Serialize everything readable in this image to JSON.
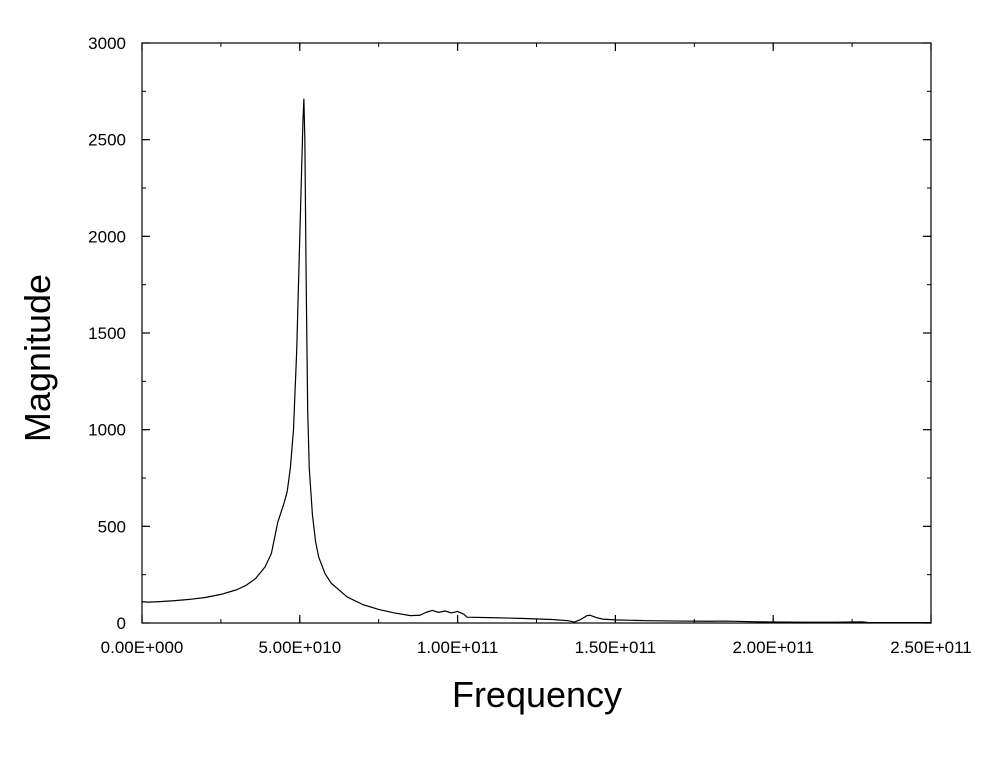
{
  "chart_data": {
    "type": "line",
    "title": "",
    "xlabel": "Frequency",
    "ylabel": "Magnitude",
    "xlim": [
      0,
      250000000000
    ],
    "ylim": [
      0,
      3000
    ],
    "grid": false,
    "legend": "none",
    "line_color": "#000000",
    "x_ticks": [
      {
        "value": 0,
        "label": "0.00E+000"
      },
      {
        "value": 50000000000,
        "label": "5.00E+010"
      },
      {
        "value": 100000000000,
        "label": "1.00E+011"
      },
      {
        "value": 150000000000,
        "label": "1.50E+011"
      },
      {
        "value": 200000000000,
        "label": "2.00E+011"
      },
      {
        "value": 250000000000,
        "label": "2.50E+011"
      }
    ],
    "y_ticks": [
      {
        "value": 0,
        "label": "0"
      },
      {
        "value": 500,
        "label": "500"
      },
      {
        "value": 1000,
        "label": "1000"
      },
      {
        "value": 1500,
        "label": "1500"
      },
      {
        "value": 2000,
        "label": "2000"
      },
      {
        "value": 2500,
        "label": "2500"
      },
      {
        "value": 3000,
        "label": "3000"
      }
    ],
    "series": [
      {
        "x": [
          0,
          2000000000.0,
          5000000000.0,
          10000000000.0,
          15000000000.0,
          20000000000.0,
          25000000000.0,
          30000000000.0,
          33000000000.0,
          36000000000.0,
          39000000000.0,
          41000000000.0,
          43000000000.0,
          45000000000.0,
          46000000000.0,
          47000000000.0,
          48000000000.0,
          49000000000.0,
          50000000000.0,
          50500000000.0,
          51000000000.0,
          51300000000.0,
          51600000000.0,
          52000000000.0,
          52500000000.0,
          53000000000.0,
          54000000000.0,
          55000000000.0,
          56000000000.0,
          58000000000.0,
          60000000000.0,
          65000000000.0,
          70000000000.0,
          75000000000.0,
          80000000000.0,
          85000000000.0,
          88000000000.0,
          90000000000.0,
          92000000000.0,
          94000000000.0,
          96000000000.0,
          98000000000.0,
          100000000000.0,
          102000000000.0,
          103000000000.0,
          110000000000.0,
          120000000000.0,
          130000000000.0,
          135000000000.0,
          137000000000.0,
          139000000000.0,
          141000000000.0,
          142000000000.0,
          144000000000.0,
          146000000000.0,
          150000000000.0,
          155000000000.0,
          160000000000.0,
          170000000000.0,
          180000000000.0,
          185000000000.0,
          190000000000.0,
          195000000000.0,
          200000000000.0,
          210000000000.0,
          220000000000.0,
          228000000000.0,
          230000000000.0,
          240000000000.0,
          250000000000.0
        ],
        "y": [
          110,
          108,
          110,
          115,
          122,
          132,
          148,
          172,
          195,
          230,
          290,
          360,
          520,
          620,
          680,
          800,
          1000,
          1400,
          2000,
          2300,
          2600,
          2710,
          2500,
          1800,
          1100,
          800,
          560,
          420,
          340,
          255,
          205,
          135,
          95,
          70,
          52,
          38,
          40,
          55,
          65,
          55,
          62,
          52,
          60,
          45,
          30,
          28,
          24,
          18,
          12,
          5,
          18,
          38,
          40,
          28,
          20,
          16,
          14,
          12,
          10,
          9,
          10,
          8,
          6,
          5,
          4,
          4,
          6,
          3,
          2,
          2
        ]
      }
    ]
  }
}
